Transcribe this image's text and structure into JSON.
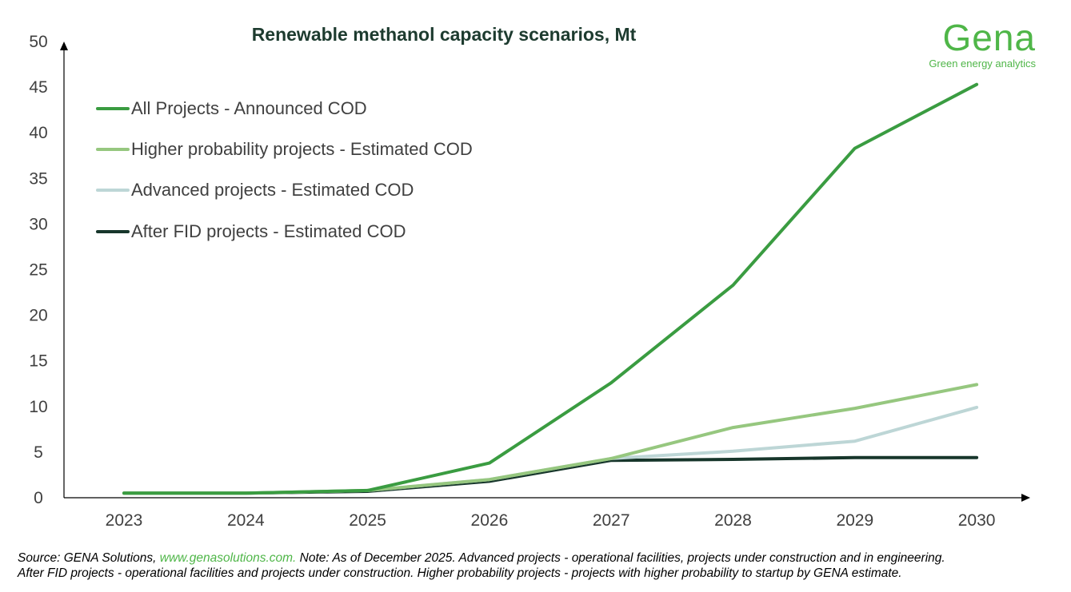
{
  "chart_data": {
    "type": "line",
    "title": "Renewable methanol capacity scenarios, Mt",
    "categories": [
      "2023",
      "2024",
      "2025",
      "2026",
      "2027",
      "2028",
      "2029",
      "2030"
    ],
    "yticks": [
      0,
      5,
      10,
      15,
      20,
      25,
      30,
      35,
      40,
      45,
      50
    ],
    "ylim": [
      0,
      50
    ],
    "grid": false,
    "legend_position": "top-left",
    "series": [
      {
        "name": "All Projects - Announced COD",
        "color": "#3a9c41",
        "values": [
          0.5,
          0.5,
          0.8,
          3.8,
          12.6,
          23.3,
          38.3,
          45.3
        ]
      },
      {
        "name": "Higher probability projects - Estimated COD",
        "color": "#96c77f",
        "values": [
          0.5,
          0.5,
          0.8,
          2.0,
          4.3,
          7.7,
          9.8,
          12.4
        ]
      },
      {
        "name": "Advanced projects - Estimated COD",
        "color": "#bdd6d6",
        "values": [
          0.5,
          0.5,
          0.8,
          2.0,
          4.3,
          5.1,
          6.2,
          9.9
        ]
      },
      {
        "name": "After FID projects - Estimated COD",
        "color": "#17362b",
        "values": [
          0.5,
          0.5,
          0.7,
          1.8,
          4.1,
          4.2,
          4.4,
          4.4
        ]
      }
    ]
  },
  "logo": {
    "word": "Gena",
    "tagline": "Green energy analytics"
  },
  "footer": {
    "prefix": "Source: GENA Solutions, ",
    "link": "www.genasolutions.com.",
    "note": " Note: As of December 2025. Advanced projects - operational facilities, projects under construction and in engineering.",
    "line2": "After FID projects - operational facilities and projects under construction. Higher probability projects - projects with higher probability to startup by GENA estimate."
  }
}
